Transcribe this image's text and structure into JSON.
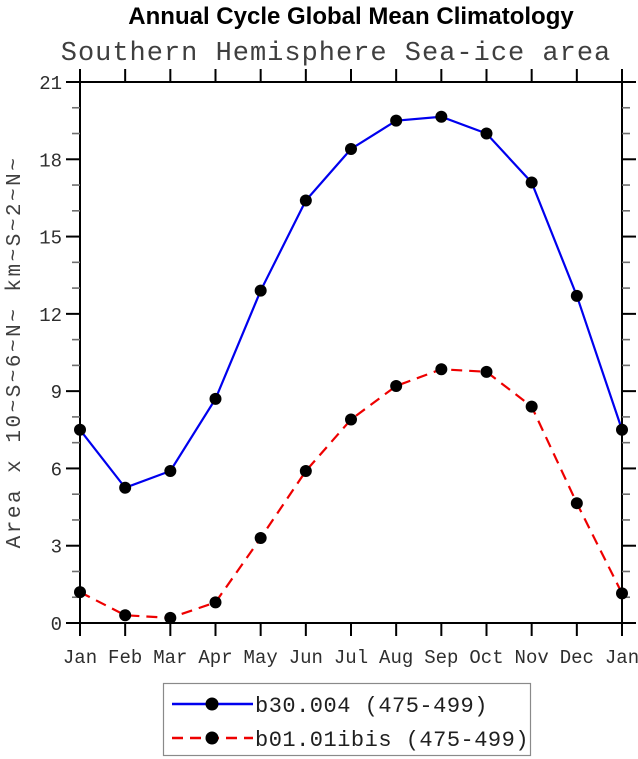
{
  "page": {
    "background": "#ffffff"
  },
  "chart_data": {
    "type": "line",
    "title": "Annual Cycle Global Mean Climatology",
    "subtitle": "Southern Hemisphere Sea-ice area",
    "ylabel": "Area x 10~S~6~N~ km~S~2~N~",
    "xlabel": "",
    "x_categories": [
      "Jan",
      "Feb",
      "Mar",
      "Apr",
      "May",
      "Jun",
      "Jul",
      "Aug",
      "Sep",
      "Oct",
      "Nov",
      "Dec",
      "Jan"
    ],
    "ylim": [
      0,
      21
    ],
    "yticks_major": [
      0,
      3,
      6,
      9,
      12,
      15,
      18,
      21
    ],
    "ytick_minor_step": 1,
    "grid": false,
    "frame_color": "#000000",
    "legend_position": "bottom-center",
    "series": [
      {
        "name": "b30.004 (475-499)",
        "color": "#0000ee",
        "line_style": "solid",
        "marker": "filled-circle",
        "marker_color": "#000000",
        "values": [
          7.5,
          5.25,
          5.9,
          8.7,
          12.9,
          16.4,
          18.4,
          19.5,
          19.65,
          19.0,
          17.1,
          12.7,
          7.5
        ]
      },
      {
        "name": "b01.01ibis (475-499)",
        "color": "#ee0000",
        "line_style": "dashed",
        "marker": "filled-circle",
        "marker_color": "#000000",
        "values": [
          1.2,
          0.3,
          0.2,
          0.8,
          3.3,
          5.9,
          7.9,
          9.2,
          9.85,
          9.75,
          8.4,
          4.65,
          1.15
        ]
      }
    ]
  }
}
